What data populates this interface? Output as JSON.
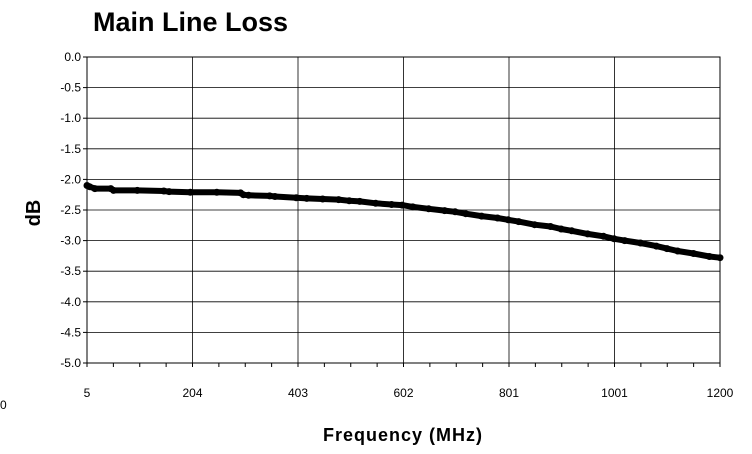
{
  "chart_data": {
    "type": "line",
    "title": "Main Line Loss",
    "xlabel": "Frequency (MHz)",
    "ylabel": "dB",
    "x_tick_labels": [
      "5",
      "204",
      "403",
      "602",
      "801",
      "1001",
      "1200"
    ],
    "y_tick_labels": [
      "0.0",
      "-0.5",
      "-1.0",
      "-1.5",
      "-2.0",
      "-2.5",
      "-3.0",
      "-3.5",
      "-4.0",
      "-4.5",
      "-5.0"
    ],
    "xlim": [
      5,
      1200
    ],
    "ylim": [
      -5.0,
      0.0
    ],
    "grid": true,
    "legend": "none",
    "line_color": "#000000",
    "series": [
      {
        "x": [
          5,
          10,
          20,
          50,
          55,
          100,
          150,
          160,
          200,
          250,
          295,
          300,
          310,
          350,
          360,
          400,
          420,
          450,
          480,
          500,
          520,
          550,
          580,
          600,
          620,
          650,
          680,
          700,
          720,
          750,
          780,
          800,
          820,
          850,
          880,
          900,
          920,
          950,
          980,
          1000,
          1020,
          1050,
          1080,
          1100,
          1120,
          1150,
          1180,
          1200
        ],
        "y": [
          -2.1,
          -2.12,
          -2.15,
          -2.15,
          -2.18,
          -2.18,
          -2.19,
          -2.2,
          -2.21,
          -2.21,
          -2.22,
          -2.25,
          -2.26,
          -2.27,
          -2.28,
          -2.3,
          -2.31,
          -2.32,
          -2.33,
          -2.35,
          -2.36,
          -2.39,
          -2.41,
          -2.42,
          -2.45,
          -2.48,
          -2.51,
          -2.53,
          -2.56,
          -2.6,
          -2.63,
          -2.66,
          -2.69,
          -2.74,
          -2.77,
          -2.81,
          -2.84,
          -2.89,
          -2.93,
          -2.97,
          -3.0,
          -3.04,
          -3.09,
          -3.13,
          -3.17,
          -3.21,
          -3.26,
          -3.28
        ]
      }
    ]
  },
  "stray_text": "0"
}
